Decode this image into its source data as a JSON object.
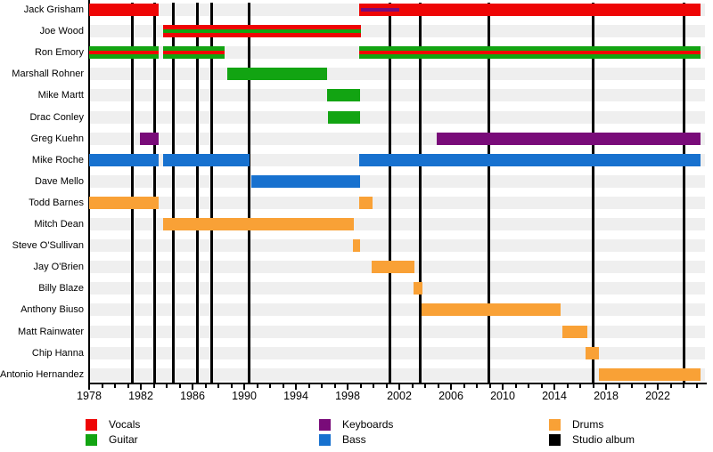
{
  "chart_data": {
    "type": "timeline",
    "description": "Band members timeline (gantt-style) with instrument roles as colored bars and studio albums as vertical black lines",
    "axis": {
      "start": 1978,
      "end": 2025.7,
      "labels": [
        1978,
        1982,
        1986,
        1990,
        1994,
        1998,
        2002,
        2006,
        2010,
        2014,
        2018,
        2022
      ],
      "minor_tick_interval": 1,
      "label_interval": 4
    },
    "present_end": 2025.3,
    "members": [
      {
        "name": "Jack Grisham",
        "segments": [
          {
            "role": "vocals",
            "start": 1978.0,
            "end": 1983.4
          },
          {
            "role": "vocals",
            "start": 1998.9,
            "end": 2025.3,
            "stripe": {
              "role": "keyboards",
              "start": 1999.0,
              "end": 2002.0
            }
          }
        ]
      },
      {
        "name": "Joe Wood",
        "segments": [
          {
            "role": "vocals",
            "start": 1983.75,
            "end": 1999.0,
            "stripe": {
              "role": "guitar",
              "start": 1983.75,
              "end": 1999.0
            }
          }
        ]
      },
      {
        "name": "Ron Emory",
        "segments": [
          {
            "role": "guitar",
            "start": 1978.0,
            "end": 1983.4,
            "stripe": {
              "role": "vocals",
              "start": 1978.0,
              "end": 1983.4
            }
          },
          {
            "role": "guitar",
            "start": 1983.75,
            "end": 1988.5,
            "stripe": {
              "role": "vocals",
              "start": 1983.75,
              "end": 1988.5
            }
          },
          {
            "role": "guitar",
            "start": 1998.9,
            "end": 2025.3,
            "stripe": {
              "role": "vocals",
              "start": 1998.9,
              "end": 2025.3
            }
          }
        ]
      },
      {
        "name": "Marshall Rohner",
        "segments": [
          {
            "role": "guitar",
            "start": 1988.7,
            "end": 1996.4
          }
        ]
      },
      {
        "name": "Mike Martt",
        "segments": [
          {
            "role": "guitar",
            "start": 1996.4,
            "end": 1999.0
          }
        ]
      },
      {
        "name": "Drac Conley",
        "segments": [
          {
            "role": "guitar",
            "start": 1996.45,
            "end": 1999.0
          }
        ]
      },
      {
        "name": "Greg Kuehn",
        "segments": [
          {
            "role": "keyboards",
            "start": 1981.95,
            "end": 1983.4
          },
          {
            "role": "keyboards",
            "start": 2004.9,
            "end": 2025.3
          }
        ]
      },
      {
        "name": "Mike Roche",
        "segments": [
          {
            "role": "bass",
            "start": 1978.0,
            "end": 1983.4
          },
          {
            "role": "bass",
            "start": 1983.75,
            "end": 1990.4
          },
          {
            "role": "bass",
            "start": 1998.9,
            "end": 2025.3
          }
        ]
      },
      {
        "name": "Dave Mello",
        "segments": [
          {
            "role": "bass",
            "start": 1990.55,
            "end": 1999.0
          }
        ]
      },
      {
        "name": "Todd Barnes",
        "segments": [
          {
            "role": "drums",
            "start": 1978.0,
            "end": 1983.4
          },
          {
            "role": "drums",
            "start": 1998.9,
            "end": 1999.9
          }
        ]
      },
      {
        "name": "Mitch Dean",
        "segments": [
          {
            "role": "drums",
            "start": 1983.75,
            "end": 1998.5
          }
        ]
      },
      {
        "name": "Steve O'Sullivan",
        "segments": [
          {
            "role": "drums",
            "start": 1998.4,
            "end": 1999.0
          }
        ]
      },
      {
        "name": "Jay O'Brien",
        "segments": [
          {
            "role": "drums",
            "start": 1999.85,
            "end": 2003.2
          }
        ]
      },
      {
        "name": "Billy Blaze",
        "segments": [
          {
            "role": "drums",
            "start": 2003.1,
            "end": 2003.8
          }
        ]
      },
      {
        "name": "Anthony Biuso",
        "segments": [
          {
            "role": "drums",
            "start": 2003.75,
            "end": 2014.5
          }
        ]
      },
      {
        "name": "Matt Rainwater",
        "segments": [
          {
            "role": "drums",
            "start": 2014.6,
            "end": 2016.55
          }
        ]
      },
      {
        "name": "Chip Hanna",
        "segments": [
          {
            "role": "drums",
            "start": 2016.4,
            "end": 2017.45
          }
        ]
      },
      {
        "name": "Antonio Hernandez",
        "segments": [
          {
            "role": "drums",
            "start": 2017.45,
            "end": 2025.3
          }
        ]
      }
    ],
    "albums": [
      1981.35,
      1983.05,
      1984.5,
      1986.4,
      1987.45,
      1990.4,
      2001.3,
      2003.6,
      2008.9,
      2017.0,
      2024.0
    ],
    "legend": {
      "columns": [
        [
          {
            "label": "Vocals",
            "color": "vocals"
          },
          {
            "label": "Guitar",
            "color": "guitar"
          }
        ],
        [
          {
            "label": "Keyboards",
            "color": "keyboards"
          },
          {
            "label": "Bass",
            "color": "bass"
          }
        ],
        [
          {
            "label": "Drums",
            "color": "drums"
          },
          {
            "label": "Studio album",
            "color": "album"
          }
        ]
      ]
    }
  },
  "colors": {
    "vocals": "#ee0505",
    "guitar": "#12a412",
    "keyboards": "#790b79",
    "bass": "#1771cf",
    "drums": "#f9a136",
    "album": "#000000",
    "row_band": "#efefef"
  }
}
